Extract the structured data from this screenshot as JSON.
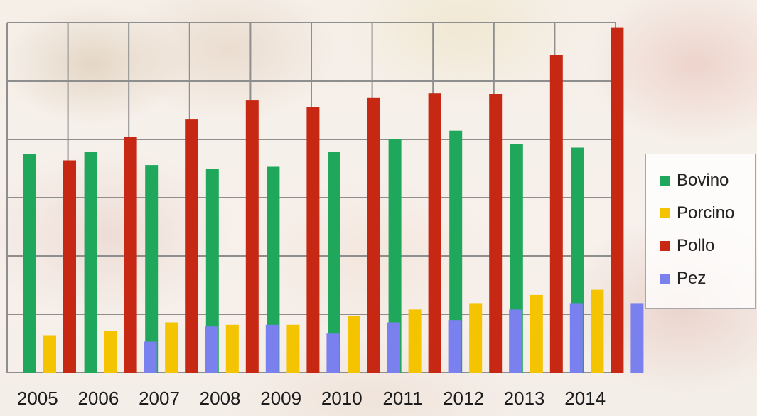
{
  "chart_data": {
    "type": "bar",
    "categories": [
      "2005",
      "2006",
      "2007",
      "2008",
      "2009",
      "2010",
      "2011",
      "2012",
      "2013",
      "2014"
    ],
    "series": [
      {
        "name": "Bovino",
        "color": "#1fa85b",
        "values": [
          37.5,
          37.8,
          35.6,
          34.9,
          35.3,
          37.8,
          40.0,
          41.5,
          39.2,
          38.6
        ]
      },
      {
        "name": "Porcino",
        "color": "#f5c400",
        "values": [
          6.4,
          7.2,
          8.6,
          8.2,
          8.2,
          9.7,
          10.8,
          11.9,
          13.3,
          14.2
        ]
      },
      {
        "name": "Pollo",
        "color": "#c62814",
        "values": [
          36.4,
          40.4,
          43.4,
          46.7,
          45.6,
          47.1,
          47.9,
          47.8,
          54.4,
          59.2
        ]
      },
      {
        "name": "Pez",
        "color": "#7b80ef",
        "values": [
          0,
          5.3,
          7.9,
          8.2,
          6.8,
          8.6,
          9.0,
          10.8,
          11.9,
          11.9
        ]
      }
    ],
    "ylim": [
      0,
      60
    ],
    "y_gridlines": [
      0,
      10,
      20,
      30,
      40,
      50,
      60
    ],
    "y_tick_labels_visible": false,
    "grid": true,
    "legend_position": "right-middle",
    "title": "",
    "xlabel": "",
    "ylabel": ""
  }
}
